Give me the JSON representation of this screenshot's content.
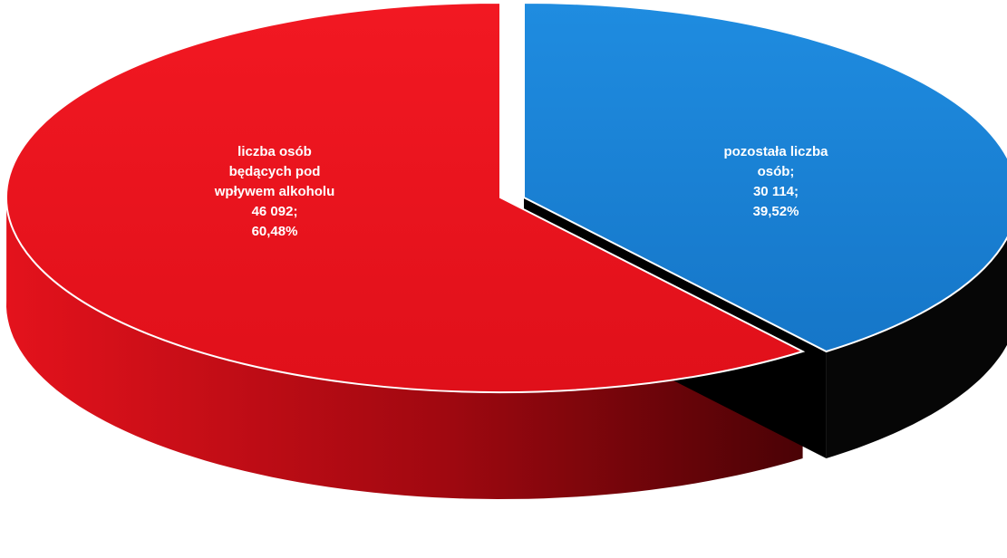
{
  "chart_data": {
    "type": "pie",
    "title": "",
    "style": "3d-exploded",
    "slices": [
      {
        "label_lines": [
          "liczba osób",
          "będących pod",
          "wpływem alkoholu",
          "46 092;",
          "60,48%"
        ],
        "value": 46092,
        "percent": 60.48,
        "color": "#e8141f"
      },
      {
        "label_lines": [
          "pozostała liczba",
          "osób;",
          "30 114;",
          "39,52%"
        ],
        "value": 30114,
        "percent": 39.52,
        "color": "#1a86d6"
      }
    ]
  }
}
